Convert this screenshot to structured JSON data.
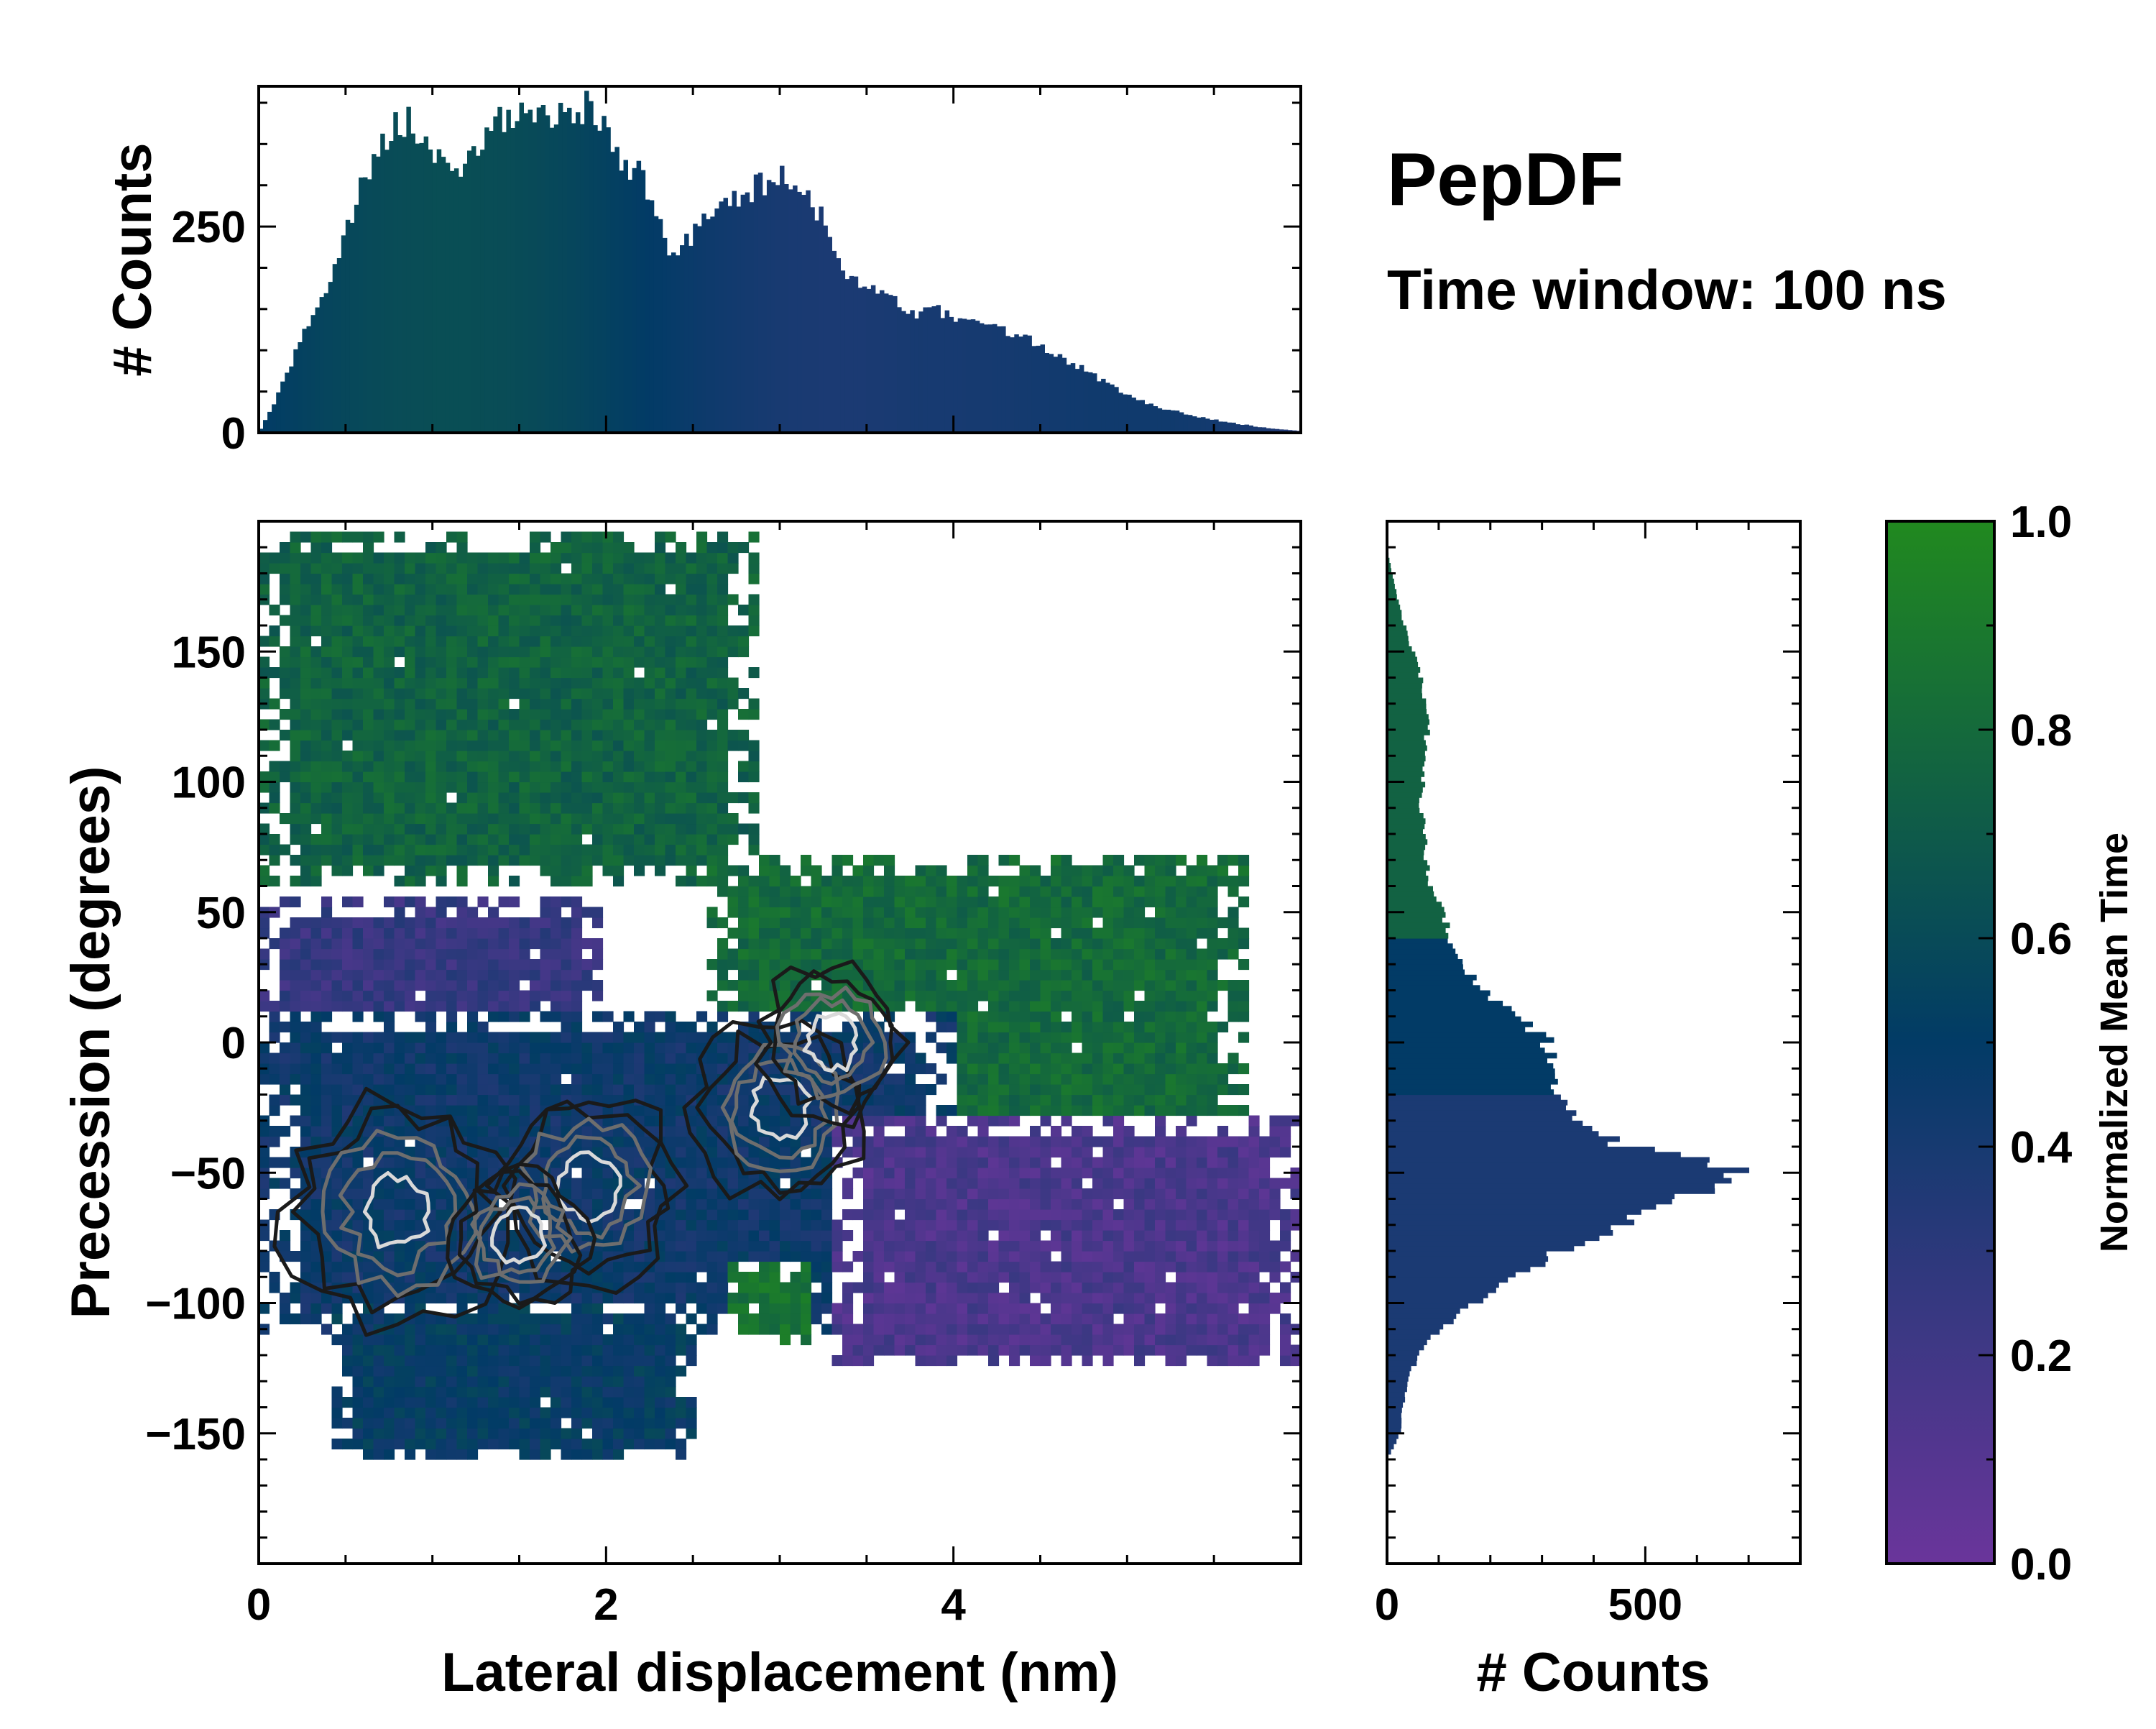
{
  "header": {
    "title": "PepDF",
    "subtitle": "Time window: 100 ns"
  },
  "colors": {
    "low": "#6a359b",
    "mid": "#023b66",
    "high": "#21891f",
    "contour_dark": "#1a1a1a",
    "contour_mid": "#6e6e6e",
    "contour_light": "#d9d9d9"
  },
  "chart_data": [
    {
      "id": "heatmap",
      "type": "heatmap",
      "title": "",
      "xlabel": "Lateral displacement (nm)",
      "ylabel": "Precession (degrees)",
      "xlim": [
        0,
        6.0
      ],
      "ylim": [
        -200,
        200
      ],
      "xticks": [
        0,
        2,
        4
      ],
      "xtick_labels": [
        "0",
        "2",
        "4"
      ],
      "yticks": [
        150,
        100,
        50,
        0,
        -50,
        -100,
        -150
      ],
      "ytick_labels": [
        "150",
        "100",
        "50",
        "0",
        "−50",
        "−100",
        "−150"
      ],
      "color_metric": "Normalized Mean Time",
      "regions": [
        {
          "name": "upper-left",
          "color_value": 0.75,
          "x": [
            0.0,
            2.9
          ],
          "y": [
            60,
            195
          ]
        },
        {
          "name": "upper-right",
          "color_value": 0.8,
          "x": [
            2.6,
            5.7
          ],
          "y": [
            -40,
            70
          ]
        },
        {
          "name": "mid-left",
          "color_value": 0.25,
          "x": [
            0.0,
            2.0
          ],
          "y": [
            -30,
            55
          ]
        },
        {
          "name": "central-band",
          "color_value": 0.45,
          "x": [
            0.0,
            4.0
          ],
          "y": [
            -110,
            10
          ]
        },
        {
          "name": "lower-left",
          "color_value": 0.5,
          "x": [
            0.4,
            2.5
          ],
          "y": [
            -160,
            -100
          ]
        },
        {
          "name": "lower-right",
          "color_value": 0.15,
          "x": [
            3.3,
            6.0
          ],
          "y": [
            -125,
            -30
          ]
        },
        {
          "name": "lower-green",
          "color_value": 0.85,
          "x": [
            2.7,
            3.2
          ],
          "y": [
            -115,
            -85
          ]
        }
      ],
      "density_peaks": [
        {
          "x": 0.8,
          "y": -65,
          "level": 1.0
        },
        {
          "x": 1.9,
          "y": -55,
          "level": 0.8
        },
        {
          "x": 3.0,
          "y": -25,
          "level": 0.75
        },
        {
          "x": 3.3,
          "y": 0,
          "level": 0.6
        },
        {
          "x": 1.5,
          "y": -75,
          "level": 0.55
        }
      ]
    },
    {
      "id": "top-hist",
      "type": "bar",
      "orientation": "vertical",
      "xlabel": "",
      "ylabel": "# Counts",
      "xlim": [
        0,
        6.0
      ],
      "ylim": [
        0,
        420
      ],
      "yticks": [
        0,
        250
      ],
      "ytick_labels": [
        "0",
        "250"
      ],
      "profile_x": [
        0.0,
        0.1,
        0.2,
        0.3,
        0.4,
        0.5,
        0.6,
        0.7,
        0.8,
        0.9,
        1.0,
        1.1,
        1.2,
        1.3,
        1.4,
        1.5,
        1.6,
        1.7,
        1.8,
        1.9,
        2.0,
        2.1,
        2.2,
        2.3,
        2.4,
        2.5,
        2.6,
        2.7,
        2.8,
        2.9,
        3.0,
        3.1,
        3.2,
        3.3,
        3.4,
        3.5,
        3.6,
        3.7,
        3.8,
        3.9,
        4.0,
        4.2,
        4.4,
        4.6,
        4.8,
        5.0,
        5.2,
        5.4,
        5.6,
        5.8,
        6.0
      ],
      "profile_counts": [
        0,
        40,
        90,
        140,
        180,
        240,
        300,
        350,
        380,
        370,
        340,
        310,
        330,
        360,
        380,
        385,
        380,
        385,
        400,
        390,
        370,
        330,
        310,
        250,
        210,
        240,
        270,
        280,
        290,
        300,
        310,
        290,
        280,
        230,
        190,
        175,
        170,
        150,
        145,
        150,
        140,
        130,
        115,
        95,
        70,
        45,
        30,
        20,
        12,
        6,
        2
      ],
      "color_by": "Normalized Mean Time"
    },
    {
      "id": "right-hist",
      "type": "bar",
      "orientation": "horizontal",
      "xlabel": "# Counts",
      "ylabel": "",
      "xlim": [
        0,
        800
      ],
      "ylim": [
        -200,
        200
      ],
      "xticks": [
        0,
        500
      ],
      "xtick_labels": [
        "0",
        "500"
      ],
      "profile_y": [
        -160,
        -150,
        -140,
        -130,
        -120,
        -110,
        -100,
        -90,
        -80,
        -70,
        -60,
        -55,
        -50,
        -45,
        -40,
        -30,
        -20,
        -10,
        0,
        10,
        20,
        30,
        40,
        50,
        60,
        70,
        80,
        90,
        100,
        110,
        120,
        130,
        140,
        150,
        160,
        170,
        180,
        190
      ],
      "profile_counts": [
        0,
        25,
        30,
        40,
        60,
        100,
        170,
        240,
        340,
        450,
        580,
        650,
        700,
        600,
        460,
        380,
        330,
        310,
        310,
        250,
        190,
        140,
        120,
        110,
        85,
        75,
        75,
        65,
        70,
        70,
        80,
        75,
        65,
        50,
        35,
        20,
        10,
        0
      ],
      "color_by": "Normalized Mean Time"
    },
    {
      "id": "colorbar",
      "type": "colorbar",
      "label": "Normalized Mean Time",
      "lim": [
        0.0,
        1.0
      ],
      "ticks": [
        0.0,
        0.2,
        0.4,
        0.6,
        0.8,
        1.0
      ],
      "tick_labels": [
        "0.0",
        "0.2",
        "0.4",
        "0.6",
        "0.8",
        "1.0"
      ]
    }
  ]
}
